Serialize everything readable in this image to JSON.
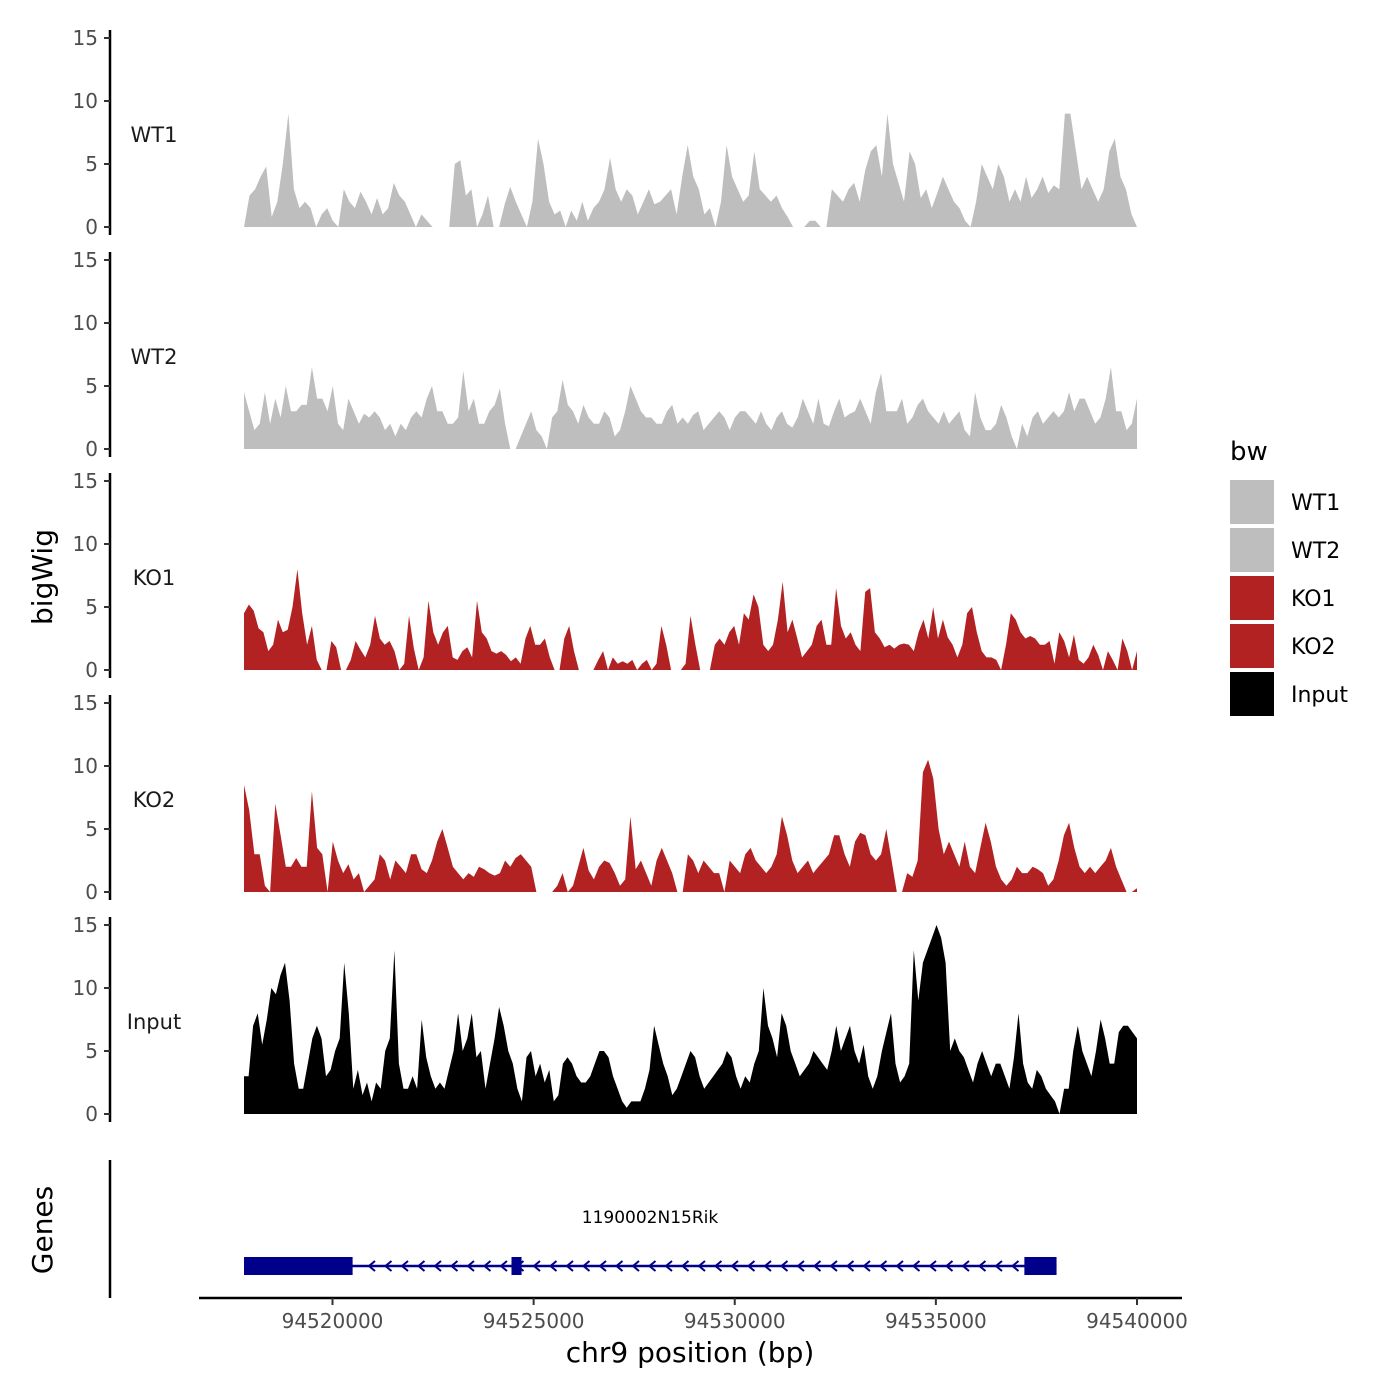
{
  "chart_data": {
    "type": "area",
    "ylabel": "bigWig",
    "xlabel": "chr9 position (bp)",
    "ylim": [
      0,
      15
    ],
    "y_ticks": [
      "0",
      "5",
      "10",
      "15"
    ],
    "xlim": [
      94517800,
      94540000
    ],
    "x_ticks": [
      94520000,
      94525000,
      94530000,
      94535000,
      94540000
    ],
    "x_tick_labels": [
      "94520000",
      "94525000",
      "94530000",
      "94535000",
      "94540000"
    ],
    "legend": {
      "title": "bw",
      "position": "right",
      "entries": [
        {
          "label": "WT1",
          "color": "#bebebe"
        },
        {
          "label": "WT2",
          "color": "#bebebe"
        },
        {
          "label": "KO1",
          "color": "#b22222"
        },
        {
          "label": "KO2",
          "color": "#b22222"
        },
        {
          "label": "Input",
          "color": "#000000"
        }
      ]
    },
    "x_start": 94517800,
    "x_end": 94540000,
    "tracks": [
      {
        "name": "WT1",
        "color": "#bebebe",
        "values": [
          0,
          2.5,
          3,
          4,
          4.8,
          0.8,
          2,
          5,
          9,
          3,
          1.5,
          2,
          1.5,
          0,
          1,
          1.5,
          0.5,
          0,
          3,
          2,
          1.5,
          2.8,
          2,
          1,
          2.3,
          1,
          1.5,
          3.5,
          2.5,
          2,
          1,
          0,
          1,
          0.5,
          0,
          0,
          0,
          0,
          5,
          5.3,
          2.5,
          3,
          0,
          1,
          2.5,
          0,
          0,
          1.8,
          3.2,
          2,
          1,
          0,
          2,
          7,
          5,
          2,
          1,
          1.3,
          0,
          1.3,
          0.5,
          2,
          0.5,
          1.5,
          2,
          3,
          5.5,
          3,
          2,
          3,
          2.5,
          1,
          2,
          3,
          1.8,
          2,
          2.5,
          3,
          1,
          4,
          6.5,
          4,
          3,
          1,
          1.5,
          0,
          2,
          6.5,
          4,
          3,
          2,
          2.5,
          6,
          3,
          2.5,
          2,
          2.5,
          1.5,
          0.8,
          0,
          0,
          0,
          0.5,
          0.5,
          0,
          0,
          3,
          2.5,
          2,
          3,
          3.5,
          2,
          4.5,
          6,
          6.5,
          4,
          9,
          5,
          3.5,
          2,
          6,
          5,
          2.3,
          3,
          1.5,
          2.7,
          4,
          3,
          2,
          1.5,
          0.5,
          0,
          2,
          5,
          4,
          3,
          5,
          4,
          2,
          3,
          2,
          4,
          2.3,
          3,
          4,
          2.7,
          3.3,
          3,
          9,
          9,
          6,
          3,
          4,
          3,
          2,
          3,
          6,
          7,
          4,
          3,
          1,
          0
        ]
      },
      {
        "name": "WT2",
        "color": "#bebebe",
        "values": [
          4.5,
          3,
          1.5,
          2,
          4.5,
          2,
          4,
          2.5,
          5,
          3,
          3,
          3.5,
          3.5,
          6.5,
          4,
          4,
          3,
          5,
          2,
          1.5,
          4,
          3,
          2,
          2.8,
          2.5,
          3,
          2.5,
          1.5,
          2,
          1,
          2,
          1.5,
          2.5,
          3,
          2.5,
          4,
          5,
          3,
          3,
          2,
          2,
          2.5,
          6.2,
          3,
          4,
          2,
          2,
          3,
          3.5,
          4.8,
          2,
          0,
          0,
          1,
          2,
          3,
          1.5,
          1,
          0,
          2.5,
          3,
          5.5,
          3.5,
          3,
          2,
          3.5,
          2.5,
          2,
          2,
          3,
          2.5,
          1,
          1.5,
          3,
          5,
          4,
          3,
          2.5,
          2.5,
          2,
          2,
          3,
          3.5,
          2,
          2.5,
          2,
          2.7,
          3,
          1.5,
          2,
          2.5,
          3,
          2.5,
          1.5,
          2.5,
          3,
          3,
          2.5,
          2,
          3,
          2,
          1.5,
          2.5,
          3,
          2,
          1.7,
          2.5,
          4,
          3,
          2,
          4,
          2,
          1.8,
          3,
          4,
          2.5,
          2.8,
          3,
          4,
          3,
          2,
          4.5,
          6,
          3,
          3,
          3,
          4,
          2,
          2.5,
          3.5,
          4,
          3,
          2.5,
          2,
          3,
          2,
          2.5,
          3,
          1.5,
          1,
          4.5,
          2.5,
          1.5,
          1.5,
          2,
          3.5,
          2.5,
          1,
          0,
          2,
          1,
          2.5,
          3,
          2,
          2.5,
          3,
          2.5,
          3,
          4.5,
          3,
          4,
          4,
          3,
          2,
          2.5,
          4,
          6.5,
          3,
          3,
          1.5,
          2,
          4
        ]
      },
      {
        "name": "KO1",
        "color": "#b22222",
        "values": [
          4.5,
          5.2,
          4.7,
          3.3,
          3,
          1.5,
          2,
          4,
          3,
          3.2,
          5,
          8,
          4.5,
          2,
          3.5,
          0.8,
          0,
          0,
          2.3,
          1.8,
          0,
          0,
          0.8,
          2.3,
          1.6,
          1,
          2,
          4.3,
          2.5,
          2,
          2.3,
          1.5,
          0,
          0.5,
          4.3,
          1.7,
          0,
          1,
          5.5,
          3,
          2,
          3,
          3.5,
          1,
          0.8,
          1.5,
          1.8,
          1,
          5.5,
          3,
          2.5,
          1.5,
          1.3,
          1.5,
          1.2,
          0.7,
          1,
          0.5,
          2.5,
          3.5,
          2,
          2,
          2.5,
          1,
          0,
          0,
          2.5,
          3.5,
          1.5,
          0,
          0,
          0,
          0,
          0.8,
          1.5,
          0,
          1,
          0.5,
          0.7,
          0.5,
          0.8,
          0,
          0.5,
          0.8,
          0,
          0.5,
          3.5,
          2,
          0,
          0,
          0,
          0.5,
          4.3,
          2,
          0,
          0,
          0,
          2,
          2.5,
          2,
          3,
          3.5,
          2,
          4.5,
          4,
          6,
          5,
          2,
          1.5,
          2,
          4,
          7,
          3,
          4,
          2.5,
          1,
          1.5,
          2,
          3.5,
          4,
          2,
          2,
          6.5,
          3.5,
          2.5,
          3,
          2,
          1.5,
          6.2,
          6.5,
          3,
          2.5,
          1.8,
          2,
          1.7,
          2,
          2.1,
          2,
          1.5,
          3,
          4,
          2.5,
          5,
          2.5,
          4,
          2.6,
          2,
          1,
          2,
          4.5,
          5,
          3,
          1.5,
          1,
          1,
          0.8,
          0,
          2,
          4.5,
          4,
          3,
          2.5,
          2.7,
          2.5,
          2,
          2,
          2.3,
          0.5,
          3,
          2.3,
          1,
          2.8,
          0.8,
          0.5,
          1,
          2,
          1.2,
          0,
          1.5,
          0.8,
          0,
          2.5,
          1.5,
          0,
          1.5
        ]
      },
      {
        "name": "KO2",
        "color": "#b22222",
        "values": [
          8.5,
          6.5,
          3,
          3,
          0.5,
          0,
          7,
          4.5,
          2,
          2,
          2.7,
          2,
          2,
          8,
          3.5,
          3,
          0,
          4,
          2.5,
          1.5,
          2.2,
          1,
          1.5,
          0,
          0.5,
          1,
          3,
          2.5,
          1,
          2.5,
          2,
          1.5,
          3,
          3,
          1.8,
          1.5,
          2.5,
          4,
          5,
          3.5,
          2,
          1.5,
          1,
          1.5,
          1.2,
          2,
          1.8,
          1.5,
          1.3,
          1.5,
          2.5,
          2,
          2.7,
          3,
          2.5,
          2,
          0,
          0,
          0,
          0,
          0.5,
          1.5,
          0,
          0.5,
          2,
          3.5,
          1.7,
          1,
          2,
          2.5,
          2.3,
          1.5,
          0.5,
          1,
          6,
          1.8,
          2.5,
          1.5,
          0.5,
          2.5,
          3.5,
          2.5,
          1.5,
          0,
          0,
          3,
          2.5,
          1.5,
          2.5,
          2,
          1.5,
          1.5,
          0,
          2.5,
          2,
          1.5,
          3,
          3.5,
          2.5,
          2,
          1.5,
          2,
          3,
          6,
          4.5,
          2.5,
          1.5,
          2,
          2.5,
          1.5,
          2,
          2.5,
          3,
          4.5,
          4.5,
          3,
          2,
          4,
          4.7,
          4.5,
          3,
          2.5,
          3,
          5,
          2.5,
          0,
          0,
          1.5,
          1.2,
          2.5,
          9.5,
          10.5,
          9,
          5,
          3,
          4,
          3,
          2,
          4,
          2,
          1.5,
          3.5,
          5.5,
          4,
          2,
          1,
          0.5,
          1,
          2,
          1.5,
          1.5,
          2,
          1.8,
          1.5,
          0.5,
          1,
          2.5,
          4.5,
          5.5,
          3.5,
          2,
          1.5,
          2,
          1.5,
          2,
          2.5,
          3.5,
          2,
          1,
          0,
          0,
          0.3
        ]
      },
      {
        "name": "Input",
        "color": "#000000",
        "values": [
          3,
          3,
          7,
          8,
          5.5,
          7.5,
          10,
          9.5,
          11,
          12,
          9,
          4,
          2,
          2,
          4,
          6,
          7,
          6,
          3,
          3.5,
          5,
          6,
          12,
          8,
          2,
          3.5,
          1.5,
          2.5,
          1,
          2.5,
          2,
          5,
          6,
          13,
          4,
          2,
          2,
          3,
          2,
          7.5,
          4.5,
          3,
          2,
          2.5,
          2,
          3.5,
          5,
          8,
          5,
          6,
          8,
          4.5,
          5,
          2,
          4,
          6,
          8.5,
          7,
          5,
          4,
          2,
          1,
          4.5,
          5,
          3,
          4,
          2.5,
          3.5,
          1,
          1.5,
          4,
          4.5,
          4,
          3,
          2.5,
          2.5,
          3,
          4,
          5,
          5,
          4.5,
          3,
          2,
          1,
          0.5,
          1,
          1,
          1,
          2,
          3.5,
          7,
          5.5,
          4,
          3,
          1.5,
          2,
          3,
          4,
          5,
          4.5,
          3,
          2,
          2.5,
          3,
          3.5,
          4,
          5,
          4.5,
          3,
          2,
          3,
          2.5,
          4,
          5,
          10,
          7,
          6,
          4.5,
          8,
          7,
          5,
          4,
          3,
          3.5,
          4,
          5,
          4.5,
          4,
          3.5,
          5,
          7,
          5,
          6,
          7,
          5,
          4,
          5.5,
          3,
          2,
          3,
          5,
          6.5,
          8,
          4,
          2.5,
          3,
          4,
          13,
          9,
          12,
          13,
          14,
          15,
          14,
          12,
          5,
          6,
          5,
          4.5,
          3.5,
          2.5,
          4,
          5,
          4,
          3,
          4,
          4,
          3,
          2,
          4.5,
          8,
          4,
          2.5,
          2,
          3.5,
          3,
          2,
          1.5,
          1,
          0,
          2,
          2,
          5,
          7,
          5,
          4,
          3,
          5,
          7.5,
          6,
          4,
          4,
          6.5,
          7,
          7,
          6.5,
          6
        ]
      }
    ],
    "gene": {
      "name": "1190002N15Rik",
      "strand": "-",
      "start": 94517800,
      "end": 94538000,
      "exons": [
        [
          94517800,
          94520500
        ],
        [
          94524450,
          94524700
        ],
        [
          94537200,
          94538000
        ]
      ],
      "color": "#00008b"
    },
    "facet_label": "Genes"
  }
}
